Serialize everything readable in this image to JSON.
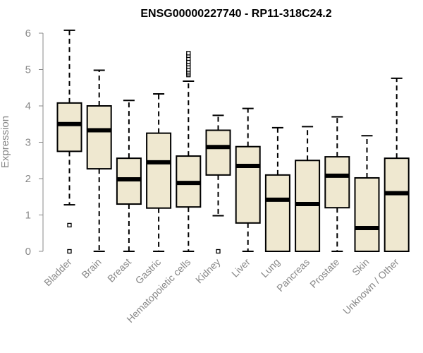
{
  "chart_data": {
    "type": "box",
    "title": "ENSG00000227740 - RP11-318C24.2",
    "xlabel": "",
    "ylabel": "Expression",
    "ylim": [
      0,
      6
    ],
    "yticks": [
      "0",
      "1",
      "2",
      "3",
      "4",
      "5",
      "6"
    ],
    "grid": false,
    "box_color": "#efe8d0",
    "categories": [
      "Bladder",
      "Brain",
      "Breast",
      "Gastric",
      "Hematopoietic cells",
      "Kidney",
      "Liver",
      "Lung",
      "Pancreas",
      "Prostate",
      "Skin",
      "Unknown / Other"
    ],
    "boxes": [
      {
        "whisker_low": 1.28,
        "q1": 2.75,
        "median": 3.5,
        "q3": 4.08,
        "whisker_high": 6.08,
        "outliers": [
          0.72,
          0.0
        ]
      },
      {
        "whisker_low": 0.0,
        "q1": 2.27,
        "median": 3.33,
        "q3": 4.0,
        "whisker_high": 4.98,
        "outliers": []
      },
      {
        "whisker_low": 0.0,
        "q1": 1.3,
        "median": 1.98,
        "q3": 2.56,
        "whisker_high": 4.15,
        "outliers": []
      },
      {
        "whisker_low": 0.0,
        "q1": 1.19,
        "median": 2.45,
        "q3": 3.25,
        "whisker_high": 4.33,
        "outliers": []
      },
      {
        "whisker_low": 0.0,
        "q1": 1.22,
        "median": 1.88,
        "q3": 2.62,
        "whisker_high": 4.68,
        "outliers": [
          4.85,
          4.9,
          4.95,
          5.0,
          5.08,
          5.15,
          5.22,
          5.3,
          5.38,
          5.45
        ]
      },
      {
        "whisker_low": 0.98,
        "q1": 2.1,
        "median": 2.87,
        "q3": 3.33,
        "whisker_high": 3.74,
        "outliers": [
          0.0
        ]
      },
      {
        "whisker_low": 0.0,
        "q1": 0.78,
        "median": 2.35,
        "q3": 2.88,
        "whisker_high": 3.93,
        "outliers": []
      },
      {
        "whisker_low": 0.0,
        "q1": 0.0,
        "median": 1.42,
        "q3": 2.1,
        "whisker_high": 3.4,
        "outliers": []
      },
      {
        "whisker_low": 0.0,
        "q1": 0.0,
        "median": 1.3,
        "q3": 2.5,
        "whisker_high": 3.43,
        "outliers": []
      },
      {
        "whisker_low": 0.0,
        "q1": 1.2,
        "median": 2.08,
        "q3": 2.6,
        "whisker_high": 3.7,
        "outliers": []
      },
      {
        "whisker_low": 0.0,
        "q1": 0.0,
        "median": 0.64,
        "q3": 2.02,
        "whisker_high": 3.18,
        "outliers": []
      },
      {
        "whisker_low": 0.0,
        "q1": 0.0,
        "median": 1.6,
        "q3": 2.56,
        "whisker_high": 4.76,
        "outliers": []
      }
    ]
  }
}
